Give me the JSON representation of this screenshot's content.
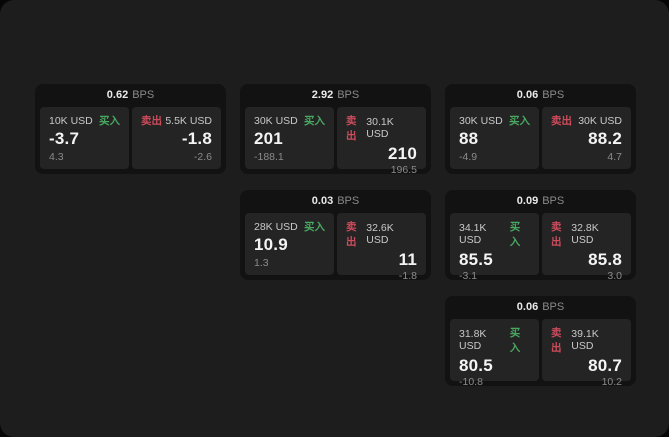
{
  "labels": {
    "buy": "买入",
    "sell": "卖出",
    "bps_unit": "BPS"
  },
  "colors": {
    "buy": "#49a860",
    "sell": "#cd4b5b",
    "page_bg": "#1d1d1e",
    "card_bg": "#121212",
    "panel_bg": "#242425"
  },
  "cards": [
    {
      "row": 1,
      "col": 1,
      "bps": "0.62",
      "buy": {
        "amount": "10K USD",
        "price": "-3.7",
        "delta": "4.3"
      },
      "sell": {
        "amount": "5.5K USD",
        "price": "-1.8",
        "delta": "-2.6"
      }
    },
    {
      "row": 1,
      "col": 2,
      "bps": "2.92",
      "buy": {
        "amount": "30K USD",
        "price": "201",
        "delta": "-188.1"
      },
      "sell": {
        "amount": "30.1K USD",
        "price": "210",
        "delta": "196.5"
      }
    },
    {
      "row": 1,
      "col": 3,
      "bps": "0.06",
      "buy": {
        "amount": "30K USD",
        "price": "88",
        "delta": "-4.9"
      },
      "sell": {
        "amount": "30K USD",
        "price": "88.2",
        "delta": "4.7"
      }
    },
    {
      "row": 2,
      "col": 2,
      "bps": "0.03",
      "buy": {
        "amount": "28K USD",
        "price": "10.9",
        "delta": "1.3"
      },
      "sell": {
        "amount": "32.6K USD",
        "price": "11",
        "delta": "-1.8"
      }
    },
    {
      "row": 2,
      "col": 3,
      "bps": "0.09",
      "buy": {
        "amount": "34.1K USD",
        "price": "85.5",
        "delta": "-3.1"
      },
      "sell": {
        "amount": "32.8K USD",
        "price": "85.8",
        "delta": "3.0"
      }
    },
    {
      "row": 3,
      "col": 3,
      "bps": "0.06",
      "buy": {
        "amount": "31.8K USD",
        "price": "80.5",
        "delta": "-10.8"
      },
      "sell": {
        "amount": "39.1K USD",
        "price": "80.7",
        "delta": "10.2"
      }
    }
  ]
}
